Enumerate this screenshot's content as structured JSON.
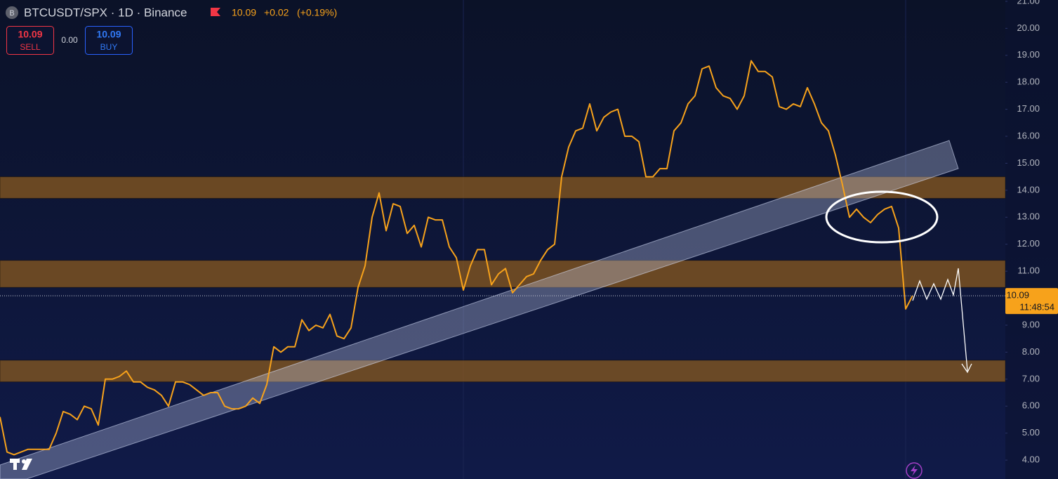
{
  "header": {
    "icon_letter": "B",
    "symbol": "BTCUSDT/SPX · 1D · Binance",
    "price": "10.09",
    "change": "+0.02",
    "change_pct": "(+0.19%)",
    "sell": {
      "price": "10.09",
      "label": "SELL"
    },
    "spread": "0.00",
    "buy": {
      "price": "10.09",
      "label": "BUY"
    }
  },
  "chart_data": {
    "type": "line",
    "color": "#f7a21b",
    "values": [
      5.6,
      4.3,
      4.2,
      4.3,
      4.4,
      4.4,
      4.4,
      4.4,
      5.0,
      5.8,
      5.7,
      5.5,
      6.0,
      5.9,
      5.3,
      7.0,
      7.0,
      7.1,
      7.3,
      6.9,
      6.9,
      6.7,
      6.6,
      6.4,
      6.0,
      6.9,
      6.9,
      6.8,
      6.6,
      6.4,
      6.5,
      6.5,
      6.0,
      5.9,
      5.9,
      6.0,
      6.3,
      6.1,
      6.8,
      8.2,
      8.0,
      8.2,
      8.2,
      9.2,
      8.8,
      9.0,
      8.9,
      9.4,
      8.6,
      8.5,
      8.9,
      10.4,
      11.2,
      13.0,
      13.9,
      12.5,
      13.5,
      13.4,
      12.4,
      12.7,
      11.9,
      13.0,
      12.9,
      12.9,
      11.9,
      11.5,
      10.3,
      11.2,
      11.8,
      11.8,
      10.5,
      10.9,
      11.1,
      10.2,
      10.5,
      10.8,
      10.9,
      11.4,
      11.8,
      12.0,
      14.5,
      15.6,
      16.2,
      16.3,
      17.2,
      16.2,
      16.7,
      16.9,
      17.0,
      16.0,
      16.0,
      15.8,
      14.5,
      14.5,
      14.8,
      14.8,
      16.2,
      16.5,
      17.2,
      17.5,
      18.5,
      18.6,
      17.8,
      17.5,
      17.4,
      17.0,
      17.5,
      18.8,
      18.4,
      18.4,
      18.2,
      17.1,
      17.0,
      17.2,
      17.1,
      17.8,
      17.2,
      16.5,
      16.2,
      15.3,
      14.2,
      13.0,
      13.3,
      13.0,
      12.8,
      13.1,
      13.3,
      13.4,
      12.6,
      9.6,
      10.1
    ],
    "ylim": [
      3.3,
      21.05
    ],
    "yticks": [
      {
        "value": 4,
        "label": "4.00"
      },
      {
        "value": 5,
        "label": "5.00"
      },
      {
        "value": 6,
        "label": "6.00"
      },
      {
        "value": 7,
        "label": "7.00"
      },
      {
        "value": 8,
        "label": "8.00"
      },
      {
        "value": 9,
        "label": "9.00"
      },
      {
        "value": 10,
        "label": "10.00"
      },
      {
        "value": 11,
        "label": "11.00"
      },
      {
        "value": 12,
        "label": "12.00"
      },
      {
        "value": 13,
        "label": "13.00"
      },
      {
        "value": 14,
        "label": "14.00"
      },
      {
        "value": 15,
        "label": "15.00"
      },
      {
        "value": 16,
        "label": "16.00"
      },
      {
        "value": 17,
        "label": "17.00"
      },
      {
        "value": 18,
        "label": "18.00"
      },
      {
        "value": 19,
        "label": "19.00"
      },
      {
        "value": 20,
        "label": "20.00"
      },
      {
        "value": 21,
        "label": "21.00"
      }
    ],
    "zones": [
      [
        13.7,
        14.5
      ],
      [
        10.4,
        11.4
      ],
      [
        6.9,
        7.7
      ]
    ],
    "zone_color": "#8a5a1e",
    "last_price": 10.09,
    "countdown": "11:48:54"
  }
}
